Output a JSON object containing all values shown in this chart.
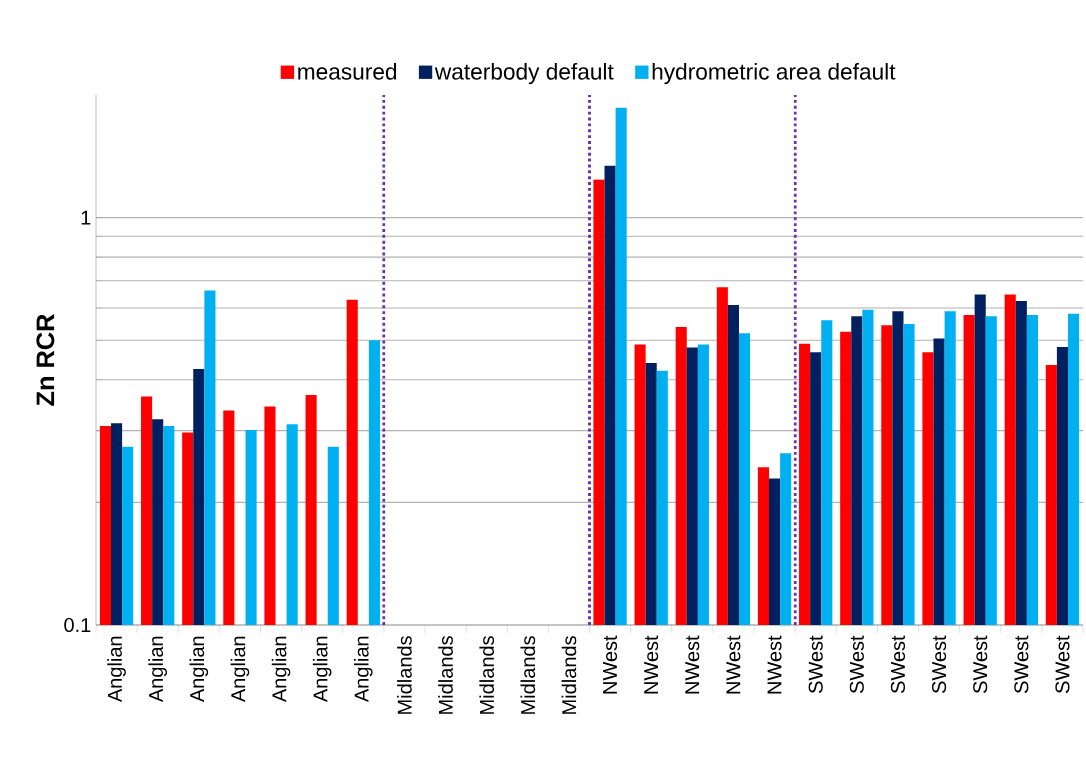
{
  "chart_data": {
    "type": "bar",
    "ylabel": "Zn RCR",
    "categories": [
      "Anglian",
      "Anglian",
      "Anglian",
      "Anglian",
      "Anglian",
      "Anglian",
      "Anglian",
      "Midlands",
      "Midlands",
      "Midlands",
      "Midlands",
      "Midlands",
      "NWest",
      "NWest",
      "NWest",
      "NWest",
      "NWest",
      "SWest",
      "SWest",
      "SWest",
      "SWest",
      "SWest",
      "SWest",
      "SWest"
    ],
    "series": [
      {
        "name": "measured",
        "color": "#ff0000",
        "values": [
          0.308,
          0.364,
          0.297,
          0.336,
          0.344,
          0.367,
          0.629,
          null,
          null,
          null,
          null,
          null,
          1.24,
          0.488,
          0.539,
          0.675,
          0.244,
          0.49,
          0.525,
          0.544,
          0.467,
          0.577,
          0.648,
          0.435
        ]
      },
      {
        "name": "waterbody default",
        "color": "#002060",
        "values": [
          0.313,
          0.32,
          0.425,
          null,
          null,
          null,
          null,
          null,
          null,
          null,
          null,
          null,
          1.34,
          0.44,
          0.48,
          0.61,
          0.229,
          0.467,
          0.573,
          0.589,
          0.505,
          0.648,
          0.624,
          0.481
        ]
      },
      {
        "name": "hydrometric area default",
        "color": "#00b0f0",
        "values": [
          0.274,
          0.308,
          0.662,
          0.301,
          0.311,
          0.274,
          0.5,
          null,
          null,
          null,
          null,
          null,
          1.86,
          0.421,
          0.488,
          0.52,
          0.264,
          0.56,
          0.594,
          0.548,
          0.589,
          0.573,
          0.577,
          0.581
        ]
      }
    ],
    "log": "y",
    "ylim": [
      0.1,
      2
    ],
    "yticks": [
      0.1,
      {
        "value": 0.2,
        "label": null
      },
      {
        "value": 0.3,
        "label": null
      },
      {
        "value": 0.4,
        "label": null
      },
      {
        "value": 0.5,
        "label": null
      },
      {
        "value": 0.6,
        "label": null
      },
      {
        "value": 0.7,
        "label": null
      },
      {
        "value": 0.8,
        "label": null
      },
      {
        "value": 0.9,
        "label": null
      },
      1
    ],
    "grid": "y",
    "legend": "top"
  }
}
